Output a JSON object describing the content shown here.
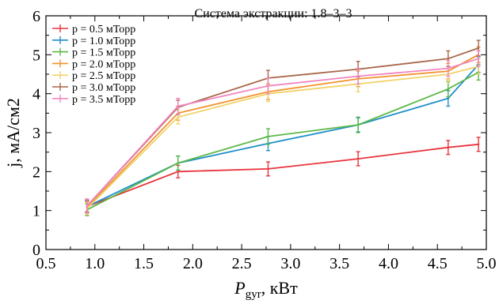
{
  "chart_data": {
    "type": "line",
    "title": "Система экстракции: 1.8–3–3",
    "xlabel_main": "P",
    "xlabel_sub": "gyr",
    "xlabel_unit": ", кВт",
    "ylabel": "j, мА/см2",
    "xlim": [
      0.5,
      5.0
    ],
    "ylim": [
      0,
      6
    ],
    "xticks": [
      "0.5",
      "1.0",
      "1.5",
      "2.0",
      "2.5",
      "3.0",
      "3.5",
      "4.0",
      "4.5",
      "5.0"
    ],
    "xtick_values": [
      0.5,
      1.0,
      1.5,
      2.0,
      2.5,
      3.0,
      3.5,
      4.0,
      4.5,
      5.0
    ],
    "yticks": [
      "0",
      "1",
      "2",
      "3",
      "4",
      "5",
      "6"
    ],
    "ytick_values": [
      0,
      1,
      2,
      3,
      4,
      5,
      6
    ],
    "legend_position": "top-left",
    "series": [
      {
        "name": "p = 0.5 мТорр",
        "color": "#e8343c",
        "x": [
          0.92,
          1.85,
          2.77,
          3.69,
          4.61,
          4.92
        ],
        "y": [
          1.1,
          2.0,
          2.07,
          2.33,
          2.62,
          2.7
        ],
        "err": [
          0.15,
          0.16,
          0.18,
          0.18,
          0.18,
          0.18
        ]
      },
      {
        "name": "p = 1.0 мТорр",
        "color": "#1f8fc9",
        "x": [
          0.92,
          1.85,
          2.77,
          3.69,
          4.61,
          4.92
        ],
        "y": [
          1.1,
          2.22,
          2.72,
          3.2,
          3.88,
          4.75
        ],
        "err": [
          0.15,
          0.18,
          0.18,
          0.18,
          0.2,
          0.2
        ]
      },
      {
        "name": "p = 1.5 мТорр",
        "color": "#5cb848",
        "x": [
          0.92,
          1.85,
          2.77,
          3.69,
          4.61,
          4.92
        ],
        "y": [
          1.02,
          2.22,
          2.9,
          3.2,
          4.12,
          4.55
        ],
        "err": [
          0.15,
          0.18,
          0.2,
          0.2,
          0.2,
          0.2
        ]
      },
      {
        "name": "p = 2.0 мТорр",
        "color": "#f2922c",
        "x": [
          0.92,
          1.85,
          2.77,
          3.69,
          4.61,
          4.92
        ],
        "y": [
          1.08,
          3.5,
          4.05,
          4.38,
          4.58,
          5.0
        ],
        "err": [
          0.15,
          0.18,
          0.2,
          0.2,
          0.2,
          0.2
        ]
      },
      {
        "name": "p = 2.5 мТорр",
        "color": "#f1d36a",
        "x": [
          0.92,
          1.85,
          2.77,
          3.69,
          4.61,
          4.92
        ],
        "y": [
          1.05,
          3.4,
          4.0,
          4.25,
          4.5,
          4.7
        ],
        "err": [
          0.15,
          0.18,
          0.2,
          0.2,
          0.2,
          0.2
        ]
      },
      {
        "name": "p = 3.0 мТорр",
        "color": "#a9664a",
        "x": [
          0.92,
          1.85,
          2.77,
          3.69,
          4.61,
          4.92
        ],
        "y": [
          1.12,
          3.65,
          4.4,
          4.63,
          4.9,
          5.17
        ],
        "err": [
          0.15,
          0.18,
          0.2,
          0.2,
          0.2,
          0.2
        ]
      },
      {
        "name": "p = 3.5 мТорр",
        "color": "#f086c0",
        "x": [
          0.92,
          1.85,
          2.77,
          3.69,
          4.61,
          4.92
        ],
        "y": [
          1.12,
          3.68,
          4.2,
          4.45,
          4.65,
          4.9
        ],
        "err": [
          0.18,
          0.2,
          0.2,
          0.2,
          0.2,
          0.2
        ]
      }
    ]
  }
}
